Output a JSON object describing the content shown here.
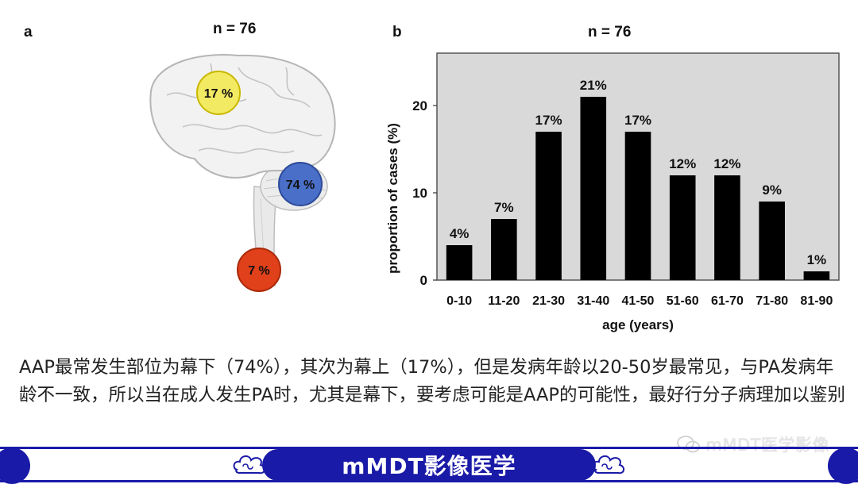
{
  "panel_a": {
    "letter": "a",
    "n_label": "n = 76"
  },
  "panel_b": {
    "letter": "b",
    "n_label": "n = 76"
  },
  "brain_markers": [
    {
      "label": "17 %",
      "color": "#f3ea63",
      "stroke": "#c9b800"
    },
    {
      "label": "74 %",
      "color": "#4a6fc8",
      "stroke": "#2c4a99"
    },
    {
      "label": "7 %",
      "color": "#e0401a",
      "stroke": "#a82a0a"
    }
  ],
  "chart_data": {
    "type": "bar",
    "categories": [
      "0-10",
      "11-20",
      "21-30",
      "31-40",
      "41-50",
      "51-60",
      "61-70",
      "71-80",
      "81-90"
    ],
    "values": [
      4,
      7,
      17,
      21,
      17,
      12,
      12,
      9,
      1
    ],
    "data_labels": [
      "4%",
      "7%",
      "17%",
      "21%",
      "17%",
      "12%",
      "12%",
      "9%",
      "1%"
    ],
    "title": "n = 76",
    "xlabel": "age (years)",
    "ylabel": "proportion of cases (%)",
    "ylim": [
      0,
      26
    ],
    "yticks": [
      0,
      10,
      20
    ],
    "plot_background": "#d9d9d9",
    "bar_color": "#000000"
  },
  "caption": "AAP最常发生部位为幕下（74%），其次为幕上（17%），但是发病年龄以20-50岁最常见，与PA发病年龄不一致，所以当在成人发生PA时，尤其是幕下，要考虑可能是AAP的可能性，最好行分子病理加以鉴别",
  "watermark": "mMDT医学影像",
  "banner": {
    "title": "mMDT影像医学",
    "color": "#1a1aa8"
  }
}
